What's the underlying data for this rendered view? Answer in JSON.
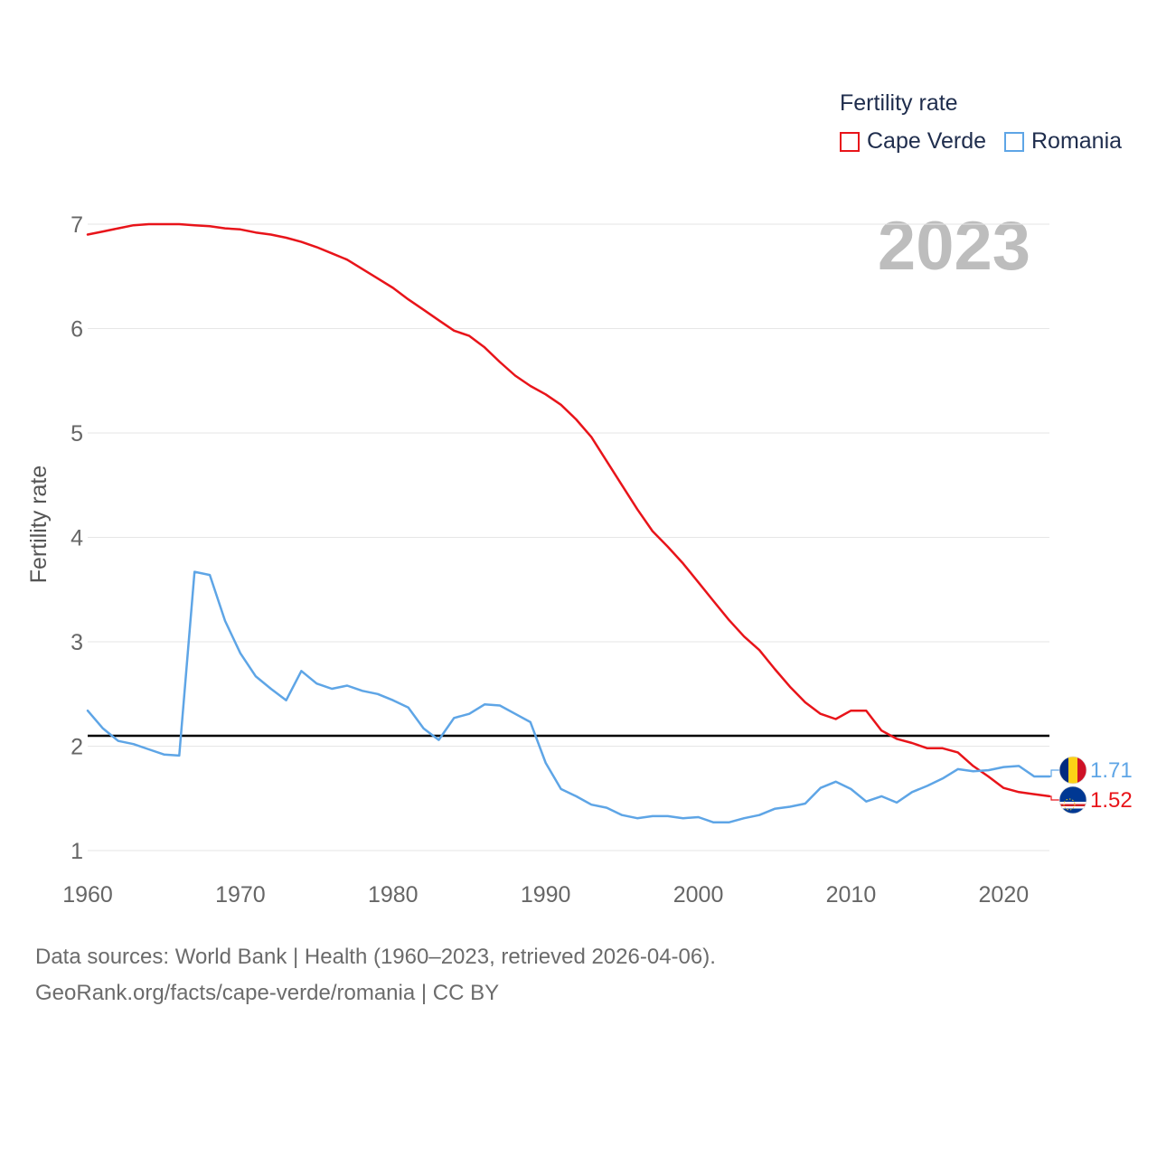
{
  "legend": {
    "title": "Fertility rate",
    "items": [
      {
        "label": "Cape Verde",
        "color": "#e8141a"
      },
      {
        "label": "Romania",
        "color": "#5ea5e6"
      }
    ]
  },
  "footer": {
    "line1": "Data sources: World Bank | Health (1960–2023, retrieved 2026-04-06).",
    "line2": "GeoRank.org/facts/cape-verde/romania | CC BY"
  },
  "chart_data": {
    "type": "line",
    "title": "Fertility rate",
    "year_label": "2023",
    "ylabel": "Fertility rate",
    "xlabel": "",
    "xlim": [
      1960,
      2023
    ],
    "ylim": [
      0.85,
      7.1
    ],
    "x_ticks": [
      1960,
      1970,
      1980,
      1990,
      2000,
      2010,
      2020
    ],
    "y_ticks": [
      1,
      2,
      3,
      4,
      5,
      6,
      7
    ],
    "grid": true,
    "legend_position": "top-right",
    "reference_line": {
      "value": 2.1,
      "color": "#000000"
    },
    "x": [
      1960,
      1961,
      1962,
      1963,
      1964,
      1965,
      1966,
      1967,
      1968,
      1969,
      1970,
      1971,
      1972,
      1973,
      1974,
      1975,
      1976,
      1977,
      1978,
      1979,
      1980,
      1981,
      1982,
      1983,
      1984,
      1985,
      1986,
      1987,
      1988,
      1989,
      1990,
      1991,
      1992,
      1993,
      1994,
      1995,
      1996,
      1997,
      1998,
      1999,
      2000,
      2001,
      2002,
      2003,
      2004,
      2005,
      2006,
      2007,
      2008,
      2009,
      2010,
      2011,
      2012,
      2013,
      2014,
      2015,
      2016,
      2017,
      2018,
      2019,
      2020,
      2021,
      2022,
      2023
    ],
    "series": [
      {
        "name": "Cape Verde",
        "color": "#e8141a",
        "end_label": "1.52",
        "values": [
          6.9,
          6.93,
          6.96,
          6.99,
          7.0,
          7.0,
          7.0,
          6.99,
          6.98,
          6.96,
          6.95,
          6.92,
          6.9,
          6.87,
          6.83,
          6.78,
          6.72,
          6.66,
          6.57,
          6.48,
          6.39,
          6.28,
          6.18,
          6.08,
          5.98,
          5.93,
          5.82,
          5.68,
          5.55,
          5.45,
          5.37,
          5.27,
          5.13,
          4.96,
          4.73,
          4.5,
          4.27,
          4.06,
          3.91,
          3.75,
          3.57,
          3.39,
          3.21,
          3.05,
          2.92,
          2.74,
          2.57,
          2.42,
          2.31,
          2.26,
          2.34,
          2.34,
          2.15,
          2.07,
          2.03,
          1.98,
          1.98,
          1.94,
          1.81,
          1.71,
          1.6,
          1.56,
          1.54,
          1.52
        ]
      },
      {
        "name": "Romania",
        "color": "#5ea5e6",
        "end_label": "1.71",
        "values": [
          2.34,
          2.17,
          2.05,
          2.02,
          1.97,
          1.92,
          1.91,
          3.67,
          3.64,
          3.2,
          2.89,
          2.67,
          2.55,
          2.44,
          2.72,
          2.6,
          2.55,
          2.58,
          2.53,
          2.5,
          2.44,
          2.37,
          2.17,
          2.06,
          2.27,
          2.31,
          2.4,
          2.39,
          2.31,
          2.23,
          1.84,
          1.59,
          1.52,
          1.44,
          1.41,
          1.34,
          1.31,
          1.33,
          1.33,
          1.31,
          1.32,
          1.27,
          1.27,
          1.31,
          1.34,
          1.4,
          1.42,
          1.45,
          1.6,
          1.66,
          1.59,
          1.47,
          1.52,
          1.46,
          1.56,
          1.62,
          1.69,
          1.78,
          1.76,
          1.77,
          1.8,
          1.81,
          1.71,
          1.71
        ]
      }
    ]
  }
}
